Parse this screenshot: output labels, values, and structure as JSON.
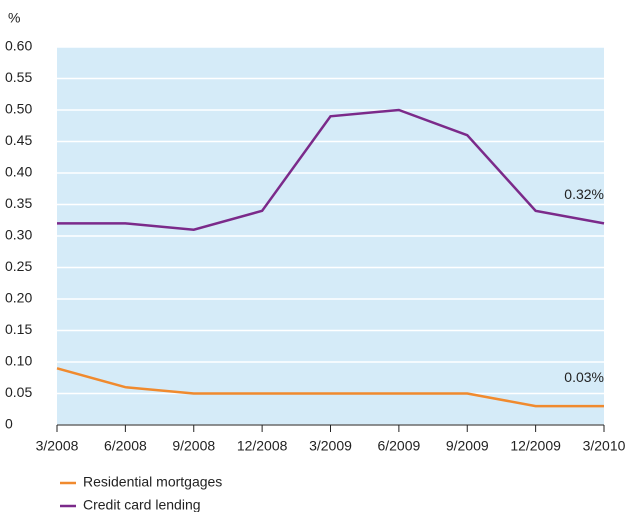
{
  "chart_data": {
    "type": "line",
    "y_unit": "%",
    "categories": [
      "3/2008",
      "6/2008",
      "9/2008",
      "12/2008",
      "3/2009",
      "6/2009",
      "9/2009",
      "12/2009",
      "3/2010"
    ],
    "series": [
      {
        "name": "Residential mortgages",
        "color": "#f08a2e",
        "values": [
          0.09,
          0.06,
          0.05,
          0.05,
          0.05,
          0.05,
          0.05,
          0.03,
          0.03
        ],
        "value_labels": [
          null,
          null,
          null,
          null,
          null,
          null,
          null,
          null,
          "0.03%"
        ]
      },
      {
        "name": "Credit card lending",
        "color": "#7b2a8a",
        "values": [
          0.32,
          0.32,
          0.31,
          0.34,
          0.49,
          0.5,
          0.46,
          0.34,
          0.32
        ],
        "value_labels": [
          null,
          null,
          null,
          null,
          null,
          null,
          null,
          null,
          "0.32%"
        ]
      }
    ],
    "ylim": [
      0,
      0.6
    ],
    "yticks": [
      0,
      0.05,
      {
        "value": 0.1,
        "label": "0.10"
      },
      0.15,
      {
        "value": 0.2,
        "label": "0.20"
      },
      0.25,
      {
        "value": 0.3,
        "label": "0.30"
      },
      0.35,
      {
        "value": 0.4,
        "label": "0.40"
      },
      0.45,
      {
        "value": 0.5,
        "label": "0.50"
      },
      0.55,
      {
        "value": 0.6,
        "label": "0.60"
      }
    ],
    "grid": true,
    "background": "#d5ebf8"
  }
}
